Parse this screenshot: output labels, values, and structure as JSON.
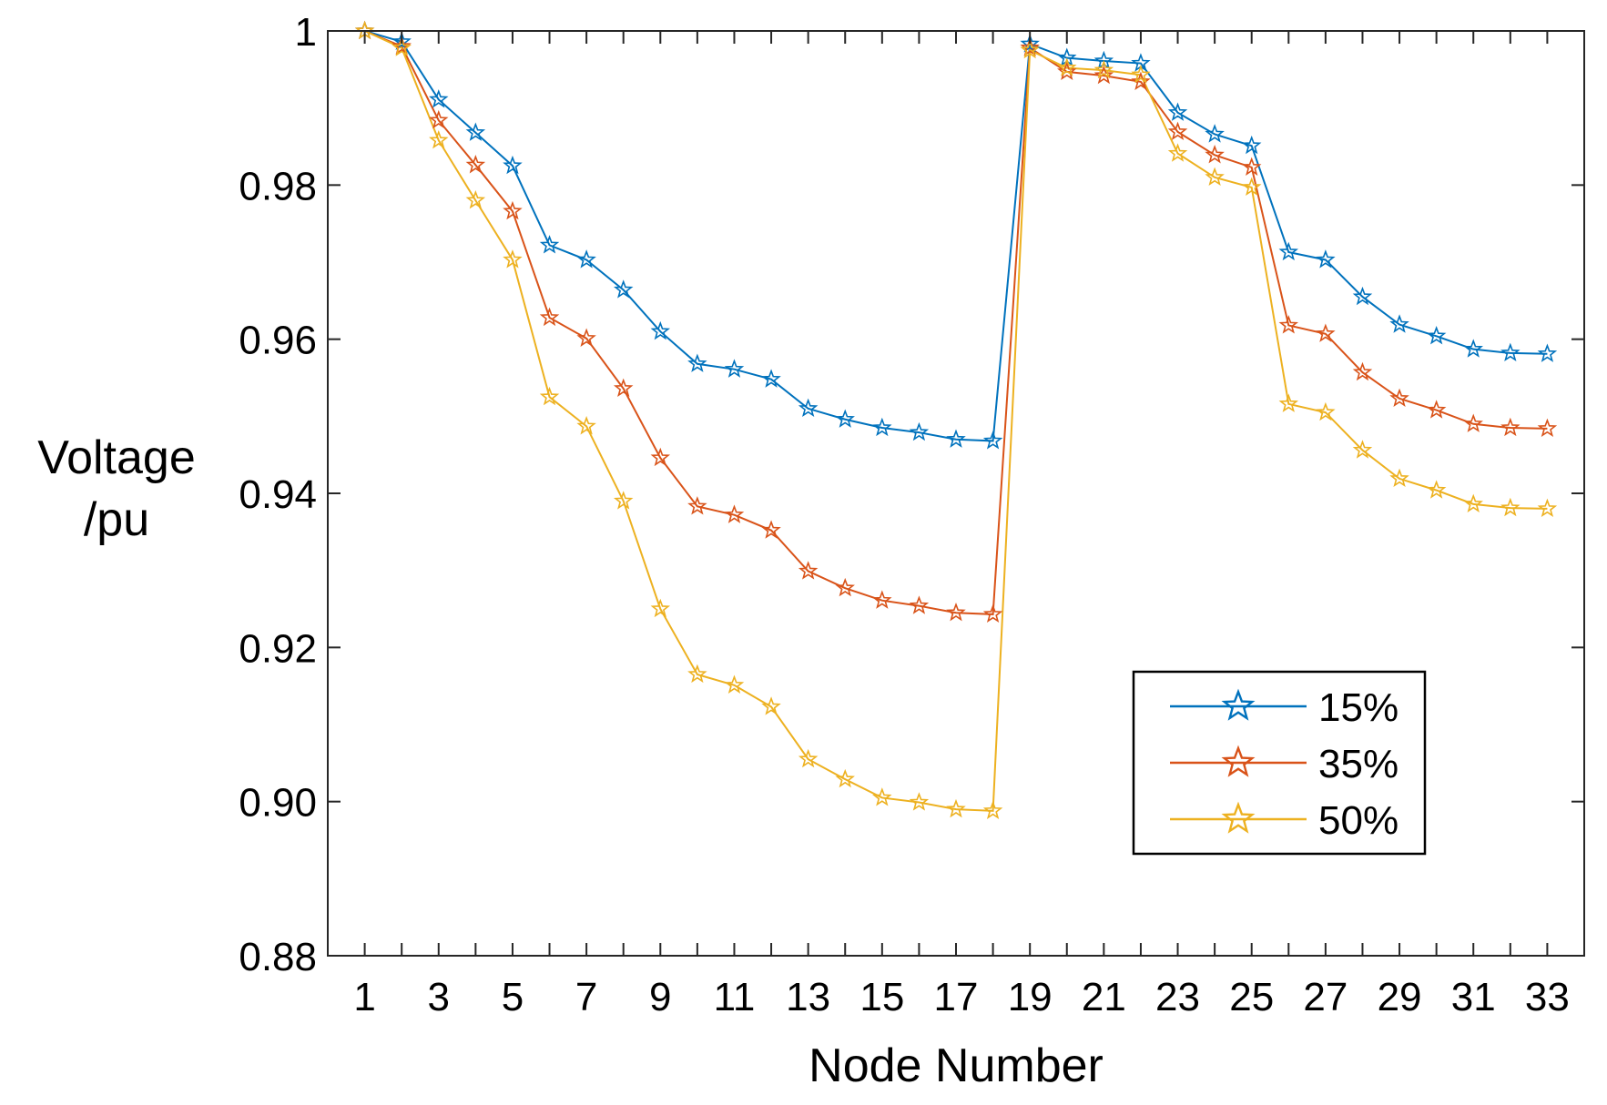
{
  "chart_data": {
    "type": "line",
    "title": "",
    "xlabel": "Node Number",
    "ylabel_lines": [
      "Voltage",
      "/pu"
    ],
    "xlim": [
      0,
      34
    ],
    "ylim": [
      0.88,
      1.0
    ],
    "xticks": [
      1,
      3,
      5,
      7,
      9,
      11,
      13,
      15,
      17,
      19,
      21,
      23,
      25,
      27,
      29,
      31,
      33
    ],
    "xtick_labels": [
      "1",
      "3",
      "5",
      "7",
      "9",
      "11",
      "13",
      "15",
      "17",
      "19",
      "21",
      "23",
      "25",
      "27",
      "29",
      "31",
      "33"
    ],
    "yticks": [
      0.88,
      0.9,
      0.92,
      0.94,
      0.96,
      0.98,
      1.0
    ],
    "ytick_labels": [
      "0.88",
      "0.90",
      "0.92",
      "0.94",
      "0.96",
      "0.98",
      "1"
    ],
    "grid": false,
    "legend_position": "lower-right",
    "marker": "star",
    "x": [
      1,
      2,
      3,
      4,
      5,
      6,
      7,
      8,
      9,
      10,
      11,
      12,
      13,
      14,
      15,
      16,
      17,
      18,
      19,
      20,
      21,
      22,
      23,
      24,
      25,
      26,
      27,
      28,
      29,
      30,
      31,
      32,
      33
    ],
    "series": [
      {
        "name": "15%",
        "color": "#0072BD",
        "values": [
          1.0,
          0.9986,
          0.9911,
          0.9868,
          0.9825,
          0.9722,
          0.9703,
          0.9664,
          0.961,
          0.9568,
          0.9561,
          0.9548,
          0.951,
          0.9496,
          0.9485,
          0.9479,
          0.947,
          0.9468,
          0.9983,
          0.9965,
          0.9961,
          0.9958,
          0.9894,
          0.9866,
          0.9851,
          0.9713,
          0.9703,
          0.9655,
          0.9619,
          0.9604,
          0.9587,
          0.9582,
          0.9581
        ]
      },
      {
        "name": "35%",
        "color": "#D95319",
        "values": [
          1.0,
          0.998,
          0.9884,
          0.9826,
          0.9766,
          0.9628,
          0.9601,
          0.9536,
          0.9446,
          0.9383,
          0.9372,
          0.9352,
          0.9299,
          0.9277,
          0.9261,
          0.9254,
          0.9245,
          0.9243,
          0.9978,
          0.9947,
          0.9942,
          0.9934,
          0.9869,
          0.9839,
          0.9823,
          0.9618,
          0.9607,
          0.9557,
          0.9523,
          0.9508,
          0.949,
          0.9485,
          0.9484
        ]
      },
      {
        "name": "50%",
        "color": "#EDB120",
        "values": [
          1.0,
          0.9978,
          0.9858,
          0.978,
          0.9703,
          0.9525,
          0.9487,
          0.939,
          0.925,
          0.9165,
          0.9151,
          0.9123,
          0.9055,
          0.9029,
          0.9005,
          0.8999,
          0.899,
          0.8988,
          0.9975,
          0.9952,
          0.9949,
          0.9943,
          0.9841,
          0.981,
          0.9797,
          0.9516,
          0.9505,
          0.9456,
          0.9419,
          0.9404,
          0.9386,
          0.9381,
          0.938
        ]
      }
    ]
  }
}
